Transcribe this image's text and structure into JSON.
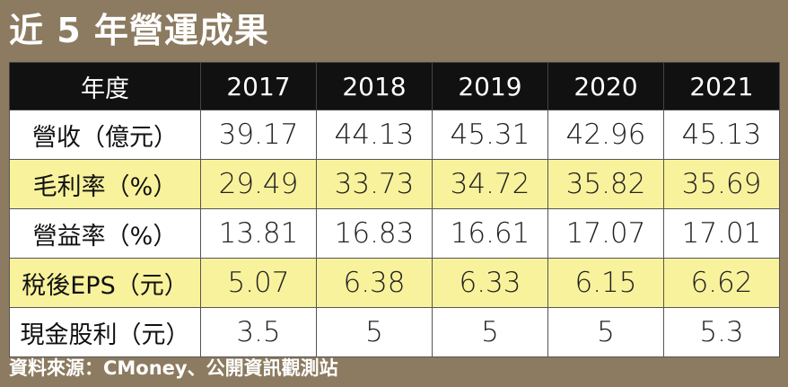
{
  "title": "近 5 年營運成果",
  "chart_data": {
    "type": "table",
    "title": "近 5 年營運成果",
    "columns": [
      "年度",
      "2017",
      "2018",
      "2019",
      "2020",
      "2021"
    ],
    "rows": [
      {
        "label": "營收（億元）",
        "values": [
          "39.17",
          "44.13",
          "45.31",
          "42.96",
          "45.13"
        ],
        "highlight": false
      },
      {
        "label": "毛利率（%）",
        "values": [
          "29.49",
          "33.73",
          "34.72",
          "35.82",
          "35.69"
        ],
        "highlight": true
      },
      {
        "label": "營益率（%）",
        "values": [
          "13.81",
          "16.83",
          "16.61",
          "17.07",
          "17.01"
        ],
        "highlight": false
      },
      {
        "label": "稅後EPS（元）",
        "values": [
          "5.07",
          "6.38",
          "6.33",
          "6.15",
          "6.62"
        ],
        "highlight": true
      },
      {
        "label": "現金股利（元）",
        "values": [
          "3.5",
          "5",
          "5",
          "5",
          "5.3"
        ],
        "highlight": false
      }
    ]
  },
  "source": "資料來源：CMoney、公開資訊觀測站",
  "colors": {
    "background": "#8c7b60",
    "header": "#111111",
    "highlight_row": "#f9f29c"
  }
}
